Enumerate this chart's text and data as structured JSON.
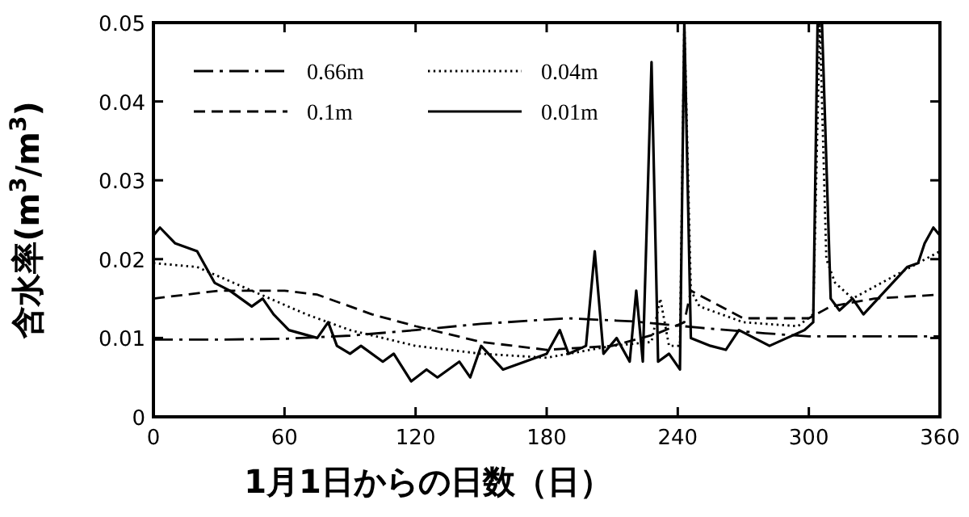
{
  "chart_data": {
    "type": "line",
    "xlabel": "1月1日からの日数（日）",
    "ylabel": "含水率(m$^{3}$/m$^{3}$)",
    "xlim": [
      0,
      360
    ],
    "xticks": [
      0,
      60,
      120,
      180,
      240,
      300,
      360
    ],
    "ylim": [
      0,
      0.05
    ],
    "yticks": [
      0,
      0.01,
      0.02,
      0.03,
      0.04,
      0.05
    ],
    "legend": "top left",
    "grid": false,
    "series": [
      {
        "name": "0.66m",
        "color": "#000000",
        "line_style": "dashdot",
        "x": [
          0,
          30,
          60,
          90,
          120,
          150,
          190,
          220,
          250,
          280,
          300,
          330,
          360
        ],
        "values": [
          0.0098,
          0.0098,
          0.0099,
          0.0103,
          0.011,
          0.0118,
          0.0125,
          0.0121,
          0.0113,
          0.0106,
          0.0102,
          0.0102,
          0.0102
        ]
      },
      {
        "name": "0.04m",
        "color": "#000000",
        "line_style": "dotted",
        "x": [
          0,
          20,
          45,
          70,
          90,
          120,
          150,
          180,
          210,
          228,
          232,
          236,
          241,
          243,
          246,
          250,
          270,
          295,
          302,
          305,
          308,
          312,
          320,
          340,
          360
        ],
        "values": [
          0.0195,
          0.019,
          0.016,
          0.013,
          0.011,
          0.009,
          0.008,
          0.0075,
          0.009,
          0.0095,
          0.015,
          0.009,
          0.009,
          0.05,
          0.016,
          0.014,
          0.012,
          0.0115,
          0.013,
          0.05,
          0.02,
          0.017,
          0.015,
          0.018,
          0.021
        ]
      },
      {
        "name": "0.1m",
        "color": "#000000",
        "line_style": "dashed",
        "x": [
          0,
          30,
          60,
          75,
          100,
          120,
          150,
          180,
          210,
          230,
          243,
          246,
          270,
          300,
          310,
          330,
          360
        ],
        "values": [
          0.015,
          0.016,
          0.016,
          0.0155,
          0.013,
          0.0115,
          0.0095,
          0.0085,
          0.009,
          0.0105,
          0.012,
          0.016,
          0.0125,
          0.0125,
          0.014,
          0.015,
          0.0155
        ]
      },
      {
        "name": "0.01m",
        "color": "#000000",
        "line_style": "solid",
        "x": [
          0,
          3,
          10,
          20,
          28,
          35,
          45,
          50,
          55,
          62,
          75,
          80,
          84,
          90,
          95,
          105,
          110,
          118,
          125,
          130,
          140,
          145,
          150,
          160,
          170,
          180,
          186,
          190,
          198,
          202,
          206,
          212,
          218,
          221,
          224,
          228,
          231,
          236,
          241,
          243,
          246,
          255,
          262,
          268,
          275,
          282,
          290,
          298,
          302,
          304,
          306,
          310,
          314,
          320,
          325,
          335,
          345,
          350,
          353,
          357,
          360
        ],
        "values": [
          0.023,
          0.024,
          0.022,
          0.021,
          0.017,
          0.016,
          0.014,
          0.015,
          0.013,
          0.011,
          0.01,
          0.012,
          0.009,
          0.008,
          0.009,
          0.007,
          0.008,
          0.0045,
          0.006,
          0.005,
          0.007,
          0.005,
          0.009,
          0.006,
          0.007,
          0.008,
          0.011,
          0.008,
          0.009,
          0.021,
          0.008,
          0.01,
          0.007,
          0.016,
          0.007,
          0.045,
          0.007,
          0.008,
          0.006,
          0.05,
          0.01,
          0.009,
          0.0085,
          0.011,
          0.01,
          0.009,
          0.01,
          0.011,
          0.012,
          0.05,
          0.05,
          0.015,
          0.0135,
          0.015,
          0.013,
          0.016,
          0.019,
          0.0195,
          0.022,
          0.024,
          0.023
        ]
      }
    ]
  }
}
